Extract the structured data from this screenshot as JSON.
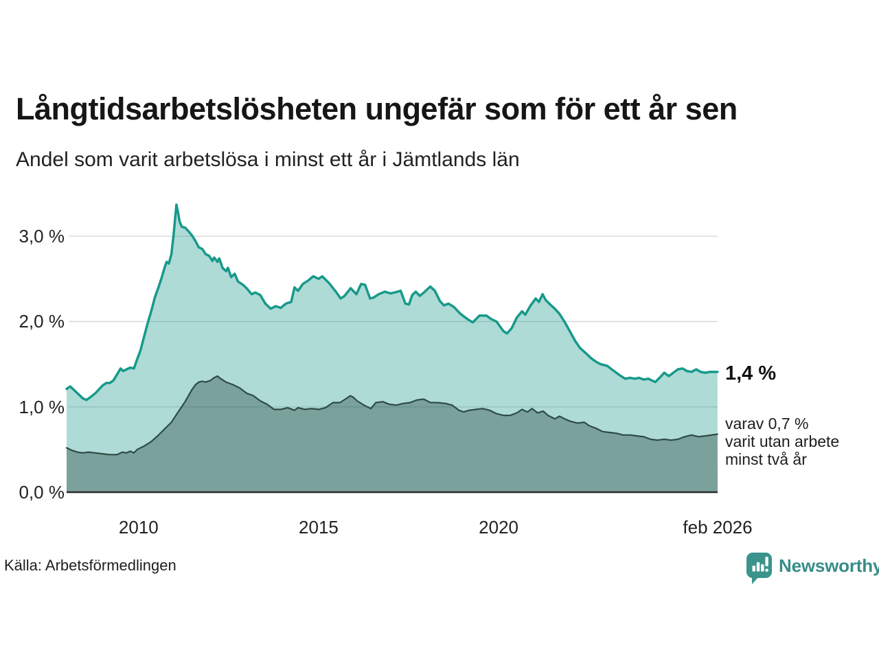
{
  "header": {
    "title": "Långtidsarbetslösheten ungefär som för ett år sen",
    "subtitle": "Andel som varit arbetslösa i minst ett år i Jämtlands län"
  },
  "annotations": {
    "end_value": "1,4 %",
    "detail_lines": [
      "varav 0,7 %",
      "varit utan arbete",
      "minst två år"
    ]
  },
  "footer": {
    "source": "Källa: Arbetsförmedlingen",
    "brand": "Newsworthy"
  },
  "colors": {
    "line_total": "#17998a",
    "fill_total": "rgba(24,153,137,0.35)",
    "line_two_years": "#2e4b45",
    "fill_two_years": "rgba(46,75,69,0.40)",
    "grid": "#d9d9d9",
    "axis": "#2b2b2b",
    "brand": "#3a948c",
    "title_text": "#161616"
  },
  "chart_data": {
    "type": "area",
    "title": "Långtidsarbetslösheten ungefär som för ett år sen",
    "subtitle": "Andel som varit arbetslösa i minst ett år i Jämtlands län",
    "xlabel": "",
    "ylabel": "",
    "xlim": [
      2008.0,
      2026.083
    ],
    "ylim": [
      0,
      3.435
    ],
    "grid": true,
    "legend_position": "none",
    "x_ticks": [
      {
        "t": 2010,
        "label": "2010"
      },
      {
        "t": 2015,
        "label": "2015"
      },
      {
        "t": 2020,
        "label": "2020"
      },
      {
        "t": 2026.083,
        "label": "feb 2026"
      }
    ],
    "y_ticks": [
      {
        "v": 0,
        "label": "0,0 %"
      },
      {
        "v": 1,
        "label": "1,0 %"
      },
      {
        "v": 2,
        "label": "2,0 %"
      },
      {
        "v": 3,
        "label": "3,0 %"
      }
    ],
    "series": [
      {
        "name": "arbetslösa minst ett år",
        "end_label": "1,4 %",
        "color": "#17998a",
        "fill": "rgba(24,153,137,0.35)",
        "points": [
          [
            2008.0,
            1.21
          ],
          [
            2008.1,
            1.24
          ],
          [
            2008.2,
            1.2
          ],
          [
            2008.3,
            1.16
          ],
          [
            2008.45,
            1.1
          ],
          [
            2008.55,
            1.08
          ],
          [
            2008.65,
            1.11
          ],
          [
            2008.8,
            1.16
          ],
          [
            2009.0,
            1.25
          ],
          [
            2009.1,
            1.28
          ],
          [
            2009.2,
            1.28
          ],
          [
            2009.3,
            1.31
          ],
          [
            2009.4,
            1.38
          ],
          [
            2009.5,
            1.45
          ],
          [
            2009.57,
            1.42
          ],
          [
            2009.67,
            1.44
          ],
          [
            2009.77,
            1.46
          ],
          [
            2009.87,
            1.45
          ],
          [
            2009.96,
            1.56
          ],
          [
            2010.05,
            1.66
          ],
          [
            2010.15,
            1.82
          ],
          [
            2010.25,
            1.98
          ],
          [
            2010.35,
            2.12
          ],
          [
            2010.45,
            2.28
          ],
          [
            2010.55,
            2.4
          ],
          [
            2010.63,
            2.5
          ],
          [
            2010.72,
            2.63
          ],
          [
            2010.78,
            2.7
          ],
          [
            2010.84,
            2.68
          ],
          [
            2010.91,
            2.79
          ],
          [
            2010.97,
            3.01
          ],
          [
            2011.01,
            3.19
          ],
          [
            2011.05,
            3.37
          ],
          [
            2011.1,
            3.27
          ],
          [
            2011.14,
            3.17
          ],
          [
            2011.2,
            3.11
          ],
          [
            2011.29,
            3.1
          ],
          [
            2011.38,
            3.06
          ],
          [
            2011.48,
            3.01
          ],
          [
            2011.57,
            2.95
          ],
          [
            2011.67,
            2.87
          ],
          [
            2011.77,
            2.85
          ],
          [
            2011.86,
            2.79
          ],
          [
            2011.96,
            2.77
          ],
          [
            2012.05,
            2.71
          ],
          [
            2012.1,
            2.75
          ],
          [
            2012.19,
            2.7
          ],
          [
            2012.24,
            2.74
          ],
          [
            2012.33,
            2.63
          ],
          [
            2012.43,
            2.59
          ],
          [
            2012.48,
            2.63
          ],
          [
            2012.57,
            2.52
          ],
          [
            2012.67,
            2.56
          ],
          [
            2012.76,
            2.47
          ],
          [
            2012.9,
            2.43
          ],
          [
            2013.0,
            2.39
          ],
          [
            2013.14,
            2.32
          ],
          [
            2013.24,
            2.34
          ],
          [
            2013.38,
            2.31
          ],
          [
            2013.52,
            2.21
          ],
          [
            2013.67,
            2.15
          ],
          [
            2013.81,
            2.18
          ],
          [
            2013.95,
            2.16
          ],
          [
            2014.09,
            2.21
          ],
          [
            2014.24,
            2.23
          ],
          [
            2014.33,
            2.4
          ],
          [
            2014.43,
            2.36
          ],
          [
            2014.56,
            2.44
          ],
          [
            2014.71,
            2.48
          ],
          [
            2014.85,
            2.53
          ],
          [
            2015.0,
            2.5
          ],
          [
            2015.1,
            2.53
          ],
          [
            2015.29,
            2.45
          ],
          [
            2015.48,
            2.35
          ],
          [
            2015.61,
            2.27
          ],
          [
            2015.72,
            2.3
          ],
          [
            2015.89,
            2.39
          ],
          [
            2016.05,
            2.32
          ],
          [
            2016.18,
            2.44
          ],
          [
            2016.29,
            2.43
          ],
          [
            2016.43,
            2.27
          ],
          [
            2016.52,
            2.28
          ],
          [
            2016.67,
            2.32
          ],
          [
            2016.84,
            2.35
          ],
          [
            2017.0,
            2.33
          ],
          [
            2017.19,
            2.35
          ],
          [
            2017.28,
            2.36
          ],
          [
            2017.41,
            2.21
          ],
          [
            2017.51,
            2.2
          ],
          [
            2017.6,
            2.31
          ],
          [
            2017.7,
            2.35
          ],
          [
            2017.81,
            2.3
          ],
          [
            2017.95,
            2.35
          ],
          [
            2018.1,
            2.41
          ],
          [
            2018.23,
            2.36
          ],
          [
            2018.37,
            2.24
          ],
          [
            2018.48,
            2.19
          ],
          [
            2018.61,
            2.21
          ],
          [
            2018.76,
            2.17
          ],
          [
            2018.94,
            2.09
          ],
          [
            2019.13,
            2.03
          ],
          [
            2019.28,
            1.99
          ],
          [
            2019.47,
            2.07
          ],
          [
            2019.66,
            2.07
          ],
          [
            2019.79,
            2.03
          ],
          [
            2019.94,
            2.0
          ],
          [
            2020.13,
            1.89
          ],
          [
            2020.23,
            1.86
          ],
          [
            2020.36,
            1.92
          ],
          [
            2020.51,
            2.05
          ],
          [
            2020.65,
            2.12
          ],
          [
            2020.74,
            2.08
          ],
          [
            2020.89,
            2.19
          ],
          [
            2021.03,
            2.27
          ],
          [
            2021.12,
            2.23
          ],
          [
            2021.22,
            2.32
          ],
          [
            2021.31,
            2.25
          ],
          [
            2021.43,
            2.2
          ],
          [
            2021.56,
            2.15
          ],
          [
            2021.69,
            2.09
          ],
          [
            2021.84,
            1.99
          ],
          [
            2022.0,
            1.87
          ],
          [
            2022.13,
            1.77
          ],
          [
            2022.26,
            1.69
          ],
          [
            2022.42,
            1.63
          ],
          [
            2022.57,
            1.57
          ],
          [
            2022.7,
            1.53
          ],
          [
            2022.83,
            1.5
          ],
          [
            2023.02,
            1.48
          ],
          [
            2023.14,
            1.44
          ],
          [
            2023.27,
            1.4
          ],
          [
            2023.4,
            1.36
          ],
          [
            2023.52,
            1.33
          ],
          [
            2023.65,
            1.34
          ],
          [
            2023.78,
            1.33
          ],
          [
            2023.9,
            1.34
          ],
          [
            2024.03,
            1.32
          ],
          [
            2024.16,
            1.33
          ],
          [
            2024.35,
            1.29
          ],
          [
            2024.47,
            1.34
          ],
          [
            2024.6,
            1.4
          ],
          [
            2024.73,
            1.36
          ],
          [
            2024.85,
            1.4
          ],
          [
            2024.98,
            1.44
          ],
          [
            2025.11,
            1.45
          ],
          [
            2025.23,
            1.42
          ],
          [
            2025.36,
            1.41
          ],
          [
            2025.49,
            1.44
          ],
          [
            2025.61,
            1.41
          ],
          [
            2025.74,
            1.4
          ],
          [
            2025.87,
            1.41
          ],
          [
            2026.08,
            1.41
          ]
        ]
      },
      {
        "name": "varav utan arbete minst två år",
        "end_label": "0,7 %",
        "color": "#2e4b45",
        "fill": "rgba(46,75,69,0.40)",
        "points": [
          [
            2008.0,
            0.52
          ],
          [
            2008.15,
            0.49
          ],
          [
            2008.3,
            0.47
          ],
          [
            2008.45,
            0.46
          ],
          [
            2008.6,
            0.47
          ],
          [
            2008.8,
            0.46
          ],
          [
            2009.0,
            0.45
          ],
          [
            2009.2,
            0.44
          ],
          [
            2009.4,
            0.44
          ],
          [
            2009.55,
            0.47
          ],
          [
            2009.65,
            0.46
          ],
          [
            2009.77,
            0.48
          ],
          [
            2009.87,
            0.46
          ],
          [
            2009.96,
            0.5
          ],
          [
            2010.15,
            0.54
          ],
          [
            2010.34,
            0.59
          ],
          [
            2010.53,
            0.66
          ],
          [
            2010.72,
            0.74
          ],
          [
            2010.91,
            0.82
          ],
          [
            2011.1,
            0.94
          ],
          [
            2011.29,
            1.06
          ],
          [
            2011.48,
            1.2
          ],
          [
            2011.58,
            1.26
          ],
          [
            2011.67,
            1.29
          ],
          [
            2011.77,
            1.3
          ],
          [
            2011.86,
            1.29
          ],
          [
            2012.0,
            1.31
          ],
          [
            2012.09,
            1.34
          ],
          [
            2012.19,
            1.36
          ],
          [
            2012.28,
            1.33
          ],
          [
            2012.43,
            1.29
          ],
          [
            2012.62,
            1.26
          ],
          [
            2012.81,
            1.22
          ],
          [
            2013.0,
            1.16
          ],
          [
            2013.19,
            1.13
          ],
          [
            2013.38,
            1.07
          ],
          [
            2013.57,
            1.03
          ],
          [
            2013.76,
            0.97
          ],
          [
            2013.95,
            0.97
          ],
          [
            2014.14,
            0.99
          ],
          [
            2014.33,
            0.96
          ],
          [
            2014.43,
            0.99
          ],
          [
            2014.62,
            0.97
          ],
          [
            2014.81,
            0.98
          ],
          [
            2015.0,
            0.97
          ],
          [
            2015.19,
            0.99
          ],
          [
            2015.4,
            1.05
          ],
          [
            2015.59,
            1.05
          ],
          [
            2015.74,
            1.09
          ],
          [
            2015.88,
            1.13
          ],
          [
            2015.97,
            1.11
          ],
          [
            2016.07,
            1.07
          ],
          [
            2016.26,
            1.02
          ],
          [
            2016.45,
            0.98
          ],
          [
            2016.59,
            1.05
          ],
          [
            2016.78,
            1.06
          ],
          [
            2016.97,
            1.03
          ],
          [
            2017.16,
            1.02
          ],
          [
            2017.35,
            1.04
          ],
          [
            2017.54,
            1.05
          ],
          [
            2017.73,
            1.08
          ],
          [
            2017.92,
            1.09
          ],
          [
            2018.11,
            1.05
          ],
          [
            2018.3,
            1.05
          ],
          [
            2018.52,
            1.04
          ],
          [
            2018.71,
            1.02
          ],
          [
            2018.9,
            0.96
          ],
          [
            2019.03,
            0.94
          ],
          [
            2019.18,
            0.96
          ],
          [
            2019.37,
            0.97
          ],
          [
            2019.56,
            0.98
          ],
          [
            2019.75,
            0.96
          ],
          [
            2019.94,
            0.92
          ],
          [
            2020.13,
            0.9
          ],
          [
            2020.32,
            0.9
          ],
          [
            2020.51,
            0.93
          ],
          [
            2020.65,
            0.97
          ],
          [
            2020.8,
            0.94
          ],
          [
            2020.93,
            0.98
          ],
          [
            2021.08,
            0.93
          ],
          [
            2021.24,
            0.95
          ],
          [
            2021.37,
            0.9
          ],
          [
            2021.56,
            0.86
          ],
          [
            2021.69,
            0.89
          ],
          [
            2021.88,
            0.85
          ],
          [
            2022.0,
            0.83
          ],
          [
            2022.19,
            0.81
          ],
          [
            2022.38,
            0.82
          ],
          [
            2022.51,
            0.78
          ],
          [
            2022.7,
            0.75
          ],
          [
            2022.89,
            0.71
          ],
          [
            2023.08,
            0.7
          ],
          [
            2023.27,
            0.69
          ],
          [
            2023.46,
            0.67
          ],
          [
            2023.65,
            0.67
          ],
          [
            2023.84,
            0.66
          ],
          [
            2024.03,
            0.65
          ],
          [
            2024.22,
            0.62
          ],
          [
            2024.41,
            0.61
          ],
          [
            2024.6,
            0.62
          ],
          [
            2024.79,
            0.61
          ],
          [
            2024.98,
            0.62
          ],
          [
            2025.17,
            0.65
          ],
          [
            2025.36,
            0.67
          ],
          [
            2025.55,
            0.65
          ],
          [
            2025.74,
            0.66
          ],
          [
            2026.08,
            0.68
          ]
        ]
      }
    ]
  }
}
